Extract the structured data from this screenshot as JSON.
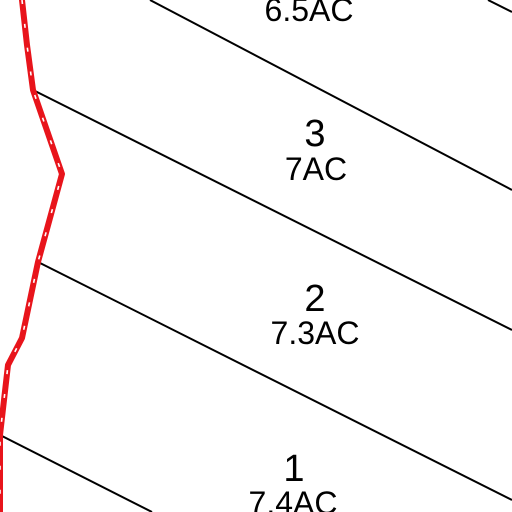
{
  "map": {
    "background": "#ffffff",
    "line_color": "#000000",
    "boundary_color": "#e8141b",
    "boundary_style": "red line with white dashed center",
    "lots": [
      {
        "number": "",
        "area": "6.5AC"
      },
      {
        "number": "3",
        "area": "7AC"
      },
      {
        "number": "2",
        "area": "7.3AC"
      },
      {
        "number": "1",
        "area": "7.4AC"
      }
    ]
  }
}
